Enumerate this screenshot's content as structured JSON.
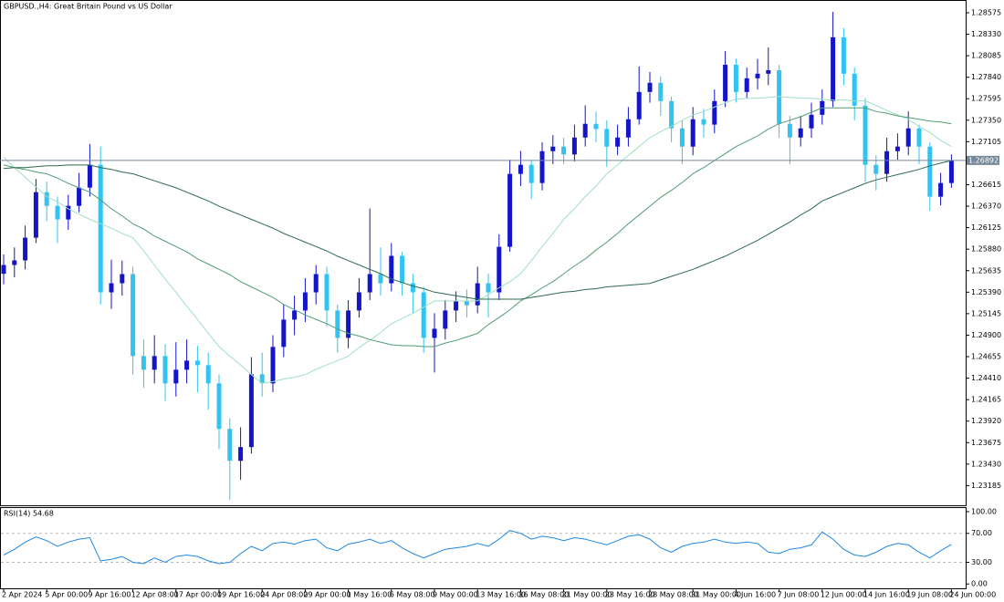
{
  "chart_data": [
    {
      "type": "candlestick",
      "title": "GBPUSD.,H4:  Great Britain Pound vs US Dollar",
      "categories": [
        "2 Apr 2024",
        null,
        null,
        null,
        "5 Apr 00:00",
        null,
        null,
        null,
        "9 Apr 16:00",
        null,
        null,
        null,
        "12 Apr 08:00",
        null,
        null,
        null,
        "17 Apr 00:00",
        null,
        null,
        null,
        "19 Apr 16:00",
        null,
        null,
        null,
        "24 Apr 08:00",
        null,
        null,
        null,
        "29 Apr 00:00",
        null,
        null,
        null,
        "1 May 16:00",
        null,
        null,
        null,
        "6 May 08:00",
        null,
        null,
        null,
        "9 May 00:00",
        null,
        null,
        null,
        "13 May 16:00",
        null,
        null,
        null,
        "16 May 08:00",
        null,
        null,
        null,
        "21 May 00:00",
        null,
        null,
        null,
        "23 May 16:00",
        null,
        null,
        null,
        "28 May 08:00",
        null,
        null,
        null,
        "31 May 00:00",
        null,
        null,
        null,
        "4 Jun 16:00",
        null,
        null,
        null,
        "7 Jun 08:00",
        null,
        null,
        null,
        "12 Jun 00:00",
        null,
        null,
        null,
        "14 Jun 16:00",
        null,
        null,
        null,
        "19 Jun 08:00",
        null,
        null,
        null,
        "24 Jun 00:00"
      ],
      "open": [
        1.256,
        1.257,
        1.25752,
        1.26011,
        1.2653,
        1.26374,
        1.26219,
        1.26374,
        1.26582,
        1.26842,
        1.25388,
        1.25492,
        1.25596,
        1.24662,
        1.24506,
        1.24662,
        1.2435,
        1.24506,
        1.2461,
        1.24558,
        1.2435,
        1.23831,
        1.23468,
        1.23624,
        1.24454,
        1.2435,
        1.24766,
        1.25077,
        1.25181,
        1.25388,
        1.25596,
        1.25181,
        1.24869,
        1.25181,
        1.25388,
        1.25596,
        1.25492,
        1.25804,
        1.25492,
        1.25388,
        1.24869,
        1.24973,
        1.25181,
        1.25285,
        1.2524,
        1.25492,
        1.25388,
        1.25907,
        1.26738,
        1.26842,
        1.26634,
        1.26997,
        1.27049,
        1.2696,
        1.27153,
        1.27309,
        1.2725,
        1.27049,
        1.27153,
        1.27361,
        1.27672,
        1.27776,
        1.27568,
        1.27257,
        1.27049,
        1.27361,
        1.273,
        1.27568,
        1.27983,
        1.27672,
        1.27828,
        1.2788,
        1.2792,
        1.27309,
        1.27153,
        1.27257,
        1.27412,
        1.27568,
        1.28295,
        1.2788,
        1.27516,
        1.26842,
        1.26738,
        1.26997,
        1.2705,
        1.27257,
        1.27049,
        1.26478,
        1.26634
      ],
      "high": [
        1.2582,
        1.259,
        1.2615,
        1.2668,
        1.2665,
        1.2648,
        1.265,
        1.2675,
        1.2708,
        1.2705,
        1.2576,
        1.2575,
        1.2568,
        1.2485,
        1.249,
        1.248,
        1.2482,
        1.2485,
        1.2478,
        1.247,
        1.2445,
        1.2395,
        1.2385,
        1.2465,
        1.247,
        1.249,
        1.2525,
        1.2535,
        1.2555,
        1.257,
        1.2568,
        1.2525,
        1.253,
        1.2555,
        1.26343,
        1.259,
        1.2595,
        1.2585,
        1.256,
        1.2545,
        1.2515,
        1.253,
        1.254,
        1.2542,
        1.2568,
        1.256,
        1.2605,
        1.269,
        1.27,
        1.269,
        1.271,
        1.2718,
        1.2715,
        1.273,
        1.2752,
        1.2745,
        1.2735,
        1.273,
        1.275,
        1.27963,
        1.279,
        1.2785,
        1.2762,
        1.2735,
        1.275,
        1.2748,
        1.277,
        1.28139,
        1.2805,
        1.2795,
        1.2805,
        1.2818,
        1.2798,
        1.274,
        1.274,
        1.2755,
        1.277,
        1.28585,
        1.284,
        1.2795,
        1.276,
        1.2695,
        1.2715,
        1.272,
        1.2745,
        1.273,
        1.271,
        1.2675,
        1.2696
      ],
      "low": [
        1.2548,
        1.2556,
        1.2565,
        1.2595,
        1.262,
        1.2595,
        1.261,
        1.263,
        1.2648,
        1.2525,
        1.252,
        1.2535,
        1.2445,
        1.243,
        1.2435,
        1.2415,
        1.242,
        1.2435,
        1.2425,
        1.2405,
        1.236,
        1.23022,
        1.2325,
        1.2355,
        1.242,
        1.2425,
        1.2465,
        1.249,
        1.2505,
        1.2525,
        1.25,
        1.247,
        1.2475,
        1.251,
        1.253,
        1.2535,
        1.254,
        1.2535,
        1.2515,
        1.247,
        1.24475,
        1.2485,
        1.2505,
        1.251,
        1.2515,
        1.251,
        1.253,
        1.2585,
        1.266,
        1.2645,
        1.2655,
        1.2685,
        1.2685,
        1.2688,
        1.2705,
        1.271,
        1.2682,
        1.2695,
        1.2705,
        1.273,
        1.2755,
        1.274,
        1.271,
        1.2685,
        1.2695,
        1.2715,
        1.272,
        1.275,
        1.2755,
        1.276,
        1.277,
        1.2775,
        1.2715,
        1.2685,
        1.2705,
        1.2715,
        1.273,
        1.275,
        1.2775,
        1.2735,
        1.2665,
        1.2655,
        1.2665,
        1.269,
        1.2695,
        1.2685,
        1.2632,
        1.2638,
        1.2658
      ],
      "close": [
        1.257,
        1.25752,
        1.26011,
        1.2653,
        1.26374,
        1.26219,
        1.26374,
        1.26582,
        1.26842,
        1.25388,
        1.25492,
        1.25596,
        1.24662,
        1.24506,
        1.24662,
        1.2435,
        1.24506,
        1.2461,
        1.24558,
        1.2435,
        1.23831,
        1.23468,
        1.23624,
        1.24454,
        1.2435,
        1.24766,
        1.25077,
        1.25181,
        1.25388,
        1.25596,
        1.25181,
        1.24869,
        1.25181,
        1.25388,
        1.25596,
        1.25492,
        1.25804,
        1.25492,
        1.25388,
        1.24869,
        1.24973,
        1.25181,
        1.25285,
        1.2524,
        1.25492,
        1.25388,
        1.25907,
        1.26738,
        1.26842,
        1.26634,
        1.26997,
        1.27049,
        1.2696,
        1.27153,
        1.27309,
        1.2725,
        1.27049,
        1.27153,
        1.27361,
        1.27672,
        1.27776,
        1.27568,
        1.27257,
        1.27049,
        1.27361,
        1.273,
        1.27568,
        1.27983,
        1.27672,
        1.27828,
        1.2788,
        1.2792,
        1.27309,
        1.27153,
        1.27257,
        1.27412,
        1.27568,
        1.28295,
        1.2788,
        1.27516,
        1.26842,
        1.26738,
        1.26997,
        1.2705,
        1.27257,
        1.27049,
        1.26478,
        1.26634,
        1.26892
      ],
      "up_color": "#1414c8",
      "down_color": "#33c3f0",
      "series": [
        {
          "color": "#9fe0c2",
          "values": [
            1.2693,
            1.2681,
            1.267,
            1.2659,
            1.2648,
            1.2642,
            1.2634,
            1.2628,
            1.2622,
            1.2617,
            1.2612,
            1.2606,
            1.2601,
            1.2586,
            1.257,
            1.2554,
            1.2539,
            1.2523,
            1.2508,
            1.2492,
            1.2477,
            1.2466,
            1.2456,
            1.2445,
            1.2435,
            1.2437,
            1.244,
            1.2442,
            1.2445,
            1.2451,
            1.2456,
            1.2461,
            1.2466,
            1.2476,
            1.2484,
            1.2493,
            1.2503,
            1.2509,
            1.2515,
            1.2522,
            1.2529,
            1.2529,
            1.2529,
            1.2529,
            1.2529,
            1.2536,
            1.2544,
            1.2551,
            1.256,
            1.2575,
            1.2591,
            1.2606,
            1.2622,
            1.2634,
            1.2648,
            1.266,
            1.2674,
            1.2684,
            1.2695,
            1.2705,
            1.2715,
            1.2722,
            1.2728,
            1.2735,
            1.2741,
            1.2745,
            1.275,
            1.2755,
            1.2759,
            1.276,
            1.276,
            1.2761,
            1.2762,
            1.2761,
            1.276,
            1.276,
            1.2759,
            1.2758,
            1.2758,
            1.2757,
            1.2757,
            1.2752,
            1.2746,
            1.2741,
            1.2736,
            1.2728,
            1.2721,
            1.2712,
            1.2705
          ]
        },
        {
          "color": "#4f9e73",
          "values": [
            1.2684,
            1.2681,
            1.2679,
            1.2676,
            1.2674,
            1.2669,
            1.2663,
            1.2658,
            1.2653,
            1.2644,
            1.2634,
            1.2626,
            1.2617,
            1.2611,
            1.2603,
            1.2597,
            1.2591,
            1.2585,
            1.2577,
            1.2571,
            1.2565,
            1.2559,
            1.2551,
            1.2545,
            1.2539,
            1.2533,
            1.2525,
            1.2519,
            1.2513,
            1.2508,
            1.2503,
            1.2497,
            1.2492,
            1.2489,
            1.2485,
            1.2482,
            1.2479,
            1.2478,
            1.2478,
            1.2477,
            1.2477,
            1.2481,
            1.2484,
            1.2488,
            1.2492,
            1.2502,
            1.251,
            1.2519,
            1.2529,
            1.2536,
            1.2544,
            1.2551,
            1.256,
            1.2569,
            1.2577,
            1.2587,
            1.2596,
            1.2606,
            1.2617,
            1.2627,
            1.2637,
            1.2647,
            1.2655,
            1.2664,
            1.2674,
            1.2681,
            1.2689,
            1.2697,
            1.2705,
            1.2711,
            1.2717,
            1.2725,
            1.2731,
            1.2735,
            1.2739,
            1.2744,
            1.2749,
            1.2749,
            1.2749,
            1.2749,
            1.2749,
            1.2745,
            1.2743,
            1.274,
            1.2738,
            1.2736,
            1.2734,
            1.2733,
            1.2731
          ]
        },
        {
          "color": "#2f6b4c",
          "values": [
            1.268,
            1.2681,
            1.2681,
            1.2682,
            1.2683,
            1.2683,
            1.2684,
            1.2684,
            1.2684,
            1.2681,
            1.2679,
            1.2676,
            1.2674,
            1.267,
            1.2666,
            1.2662,
            1.2658,
            1.2653,
            1.2648,
            1.2643,
            1.2637,
            1.2632,
            1.2627,
            1.2622,
            1.2617,
            1.2612,
            1.2606,
            1.2601,
            1.2596,
            1.2591,
            1.2586,
            1.258,
            1.2575,
            1.257,
            1.2565,
            1.256,
            1.2554,
            1.255,
            1.2546,
            1.2543,
            1.2539,
            1.2537,
            1.2535,
            1.2533,
            1.2531,
            1.2531,
            1.2531,
            1.2531,
            1.2531,
            1.2533,
            1.2535,
            1.2537,
            1.2539,
            1.254,
            1.2542,
            1.2543,
            1.2545,
            1.2546,
            1.2547,
            1.2548,
            1.2549,
            1.2553,
            1.2557,
            1.2561,
            1.2565,
            1.257,
            1.2575,
            1.258,
            1.2586,
            1.2592,
            1.2598,
            1.2605,
            1.2612,
            1.2619,
            1.2627,
            1.2634,
            1.2643,
            1.2648,
            1.2653,
            1.2658,
            1.2663,
            1.2667,
            1.267,
            1.2673,
            1.2676,
            1.2679,
            1.2683,
            1.2686,
            1.2689
          ]
        }
      ],
      "current_price": 1.26892,
      "ylim": [
        1.2295,
        1.2871
      ],
      "yticks": [
        1.28575,
        {
          "value": 1.2833,
          "label": "1.28330"
        },
        1.28085,
        {
          "value": 1.2784,
          "label": "1.27840"
        },
        1.27595,
        {
          "value": 1.2735,
          "label": "1.27350"
        },
        1.27105,
        1.26615,
        {
          "value": 1.2637,
          "label": "1.26370"
        },
        1.26125,
        {
          "value": 1.2588,
          "label": "1.25880"
        },
        1.25635,
        {
          "value": 1.2539,
          "label": "1.25390"
        },
        1.25145,
        {
          "value": 1.249,
          "label": "1.24900"
        },
        1.24655,
        {
          "value": 1.2441,
          "label": "1.24410"
        },
        1.24165,
        {
          "value": 1.2392,
          "label": "1.23920"
        },
        1.23675,
        {
          "value": 1.2343,
          "label": "1.23430"
        },
        1.23185
      ]
    },
    {
      "type": "line",
      "title": "RSI(14) 54.68",
      "color": "#1e88e5",
      "values": [
        40,
        48,
        58,
        65,
        60,
        52,
        58,
        62,
        64,
        32,
        34,
        38,
        30,
        28,
        36,
        30,
        38,
        40,
        38,
        32,
        28,
        30,
        42,
        52,
        46,
        56,
        58,
        55,
        60,
        62,
        50,
        46,
        55,
        58,
        62,
        56,
        60,
        50,
        42,
        36,
        42,
        48,
        50,
        52,
        56,
        52,
        62,
        74,
        70,
        62,
        66,
        64,
        60,
        64,
        62,
        58,
        54,
        60,
        66,
        68,
        62,
        50,
        44,
        52,
        56,
        58,
        62,
        58,
        56,
        58,
        56,
        44,
        42,
        48,
        50,
        54,
        72,
        62,
        48,
        40,
        38,
        44,
        52,
        56,
        54,
        44,
        36,
        46,
        54.68
      ],
      "levels": [
        70,
        30
      ],
      "ylim": [
        -6,
        105
      ],
      "yticks": [
        {
          "value": 100,
          "label": "100.00"
        },
        {
          "value": 70,
          "label": "70.00"
        },
        {
          "value": 30,
          "label": "30.00"
        },
        {
          "value": 0,
          "label": "0.00"
        }
      ]
    }
  ]
}
